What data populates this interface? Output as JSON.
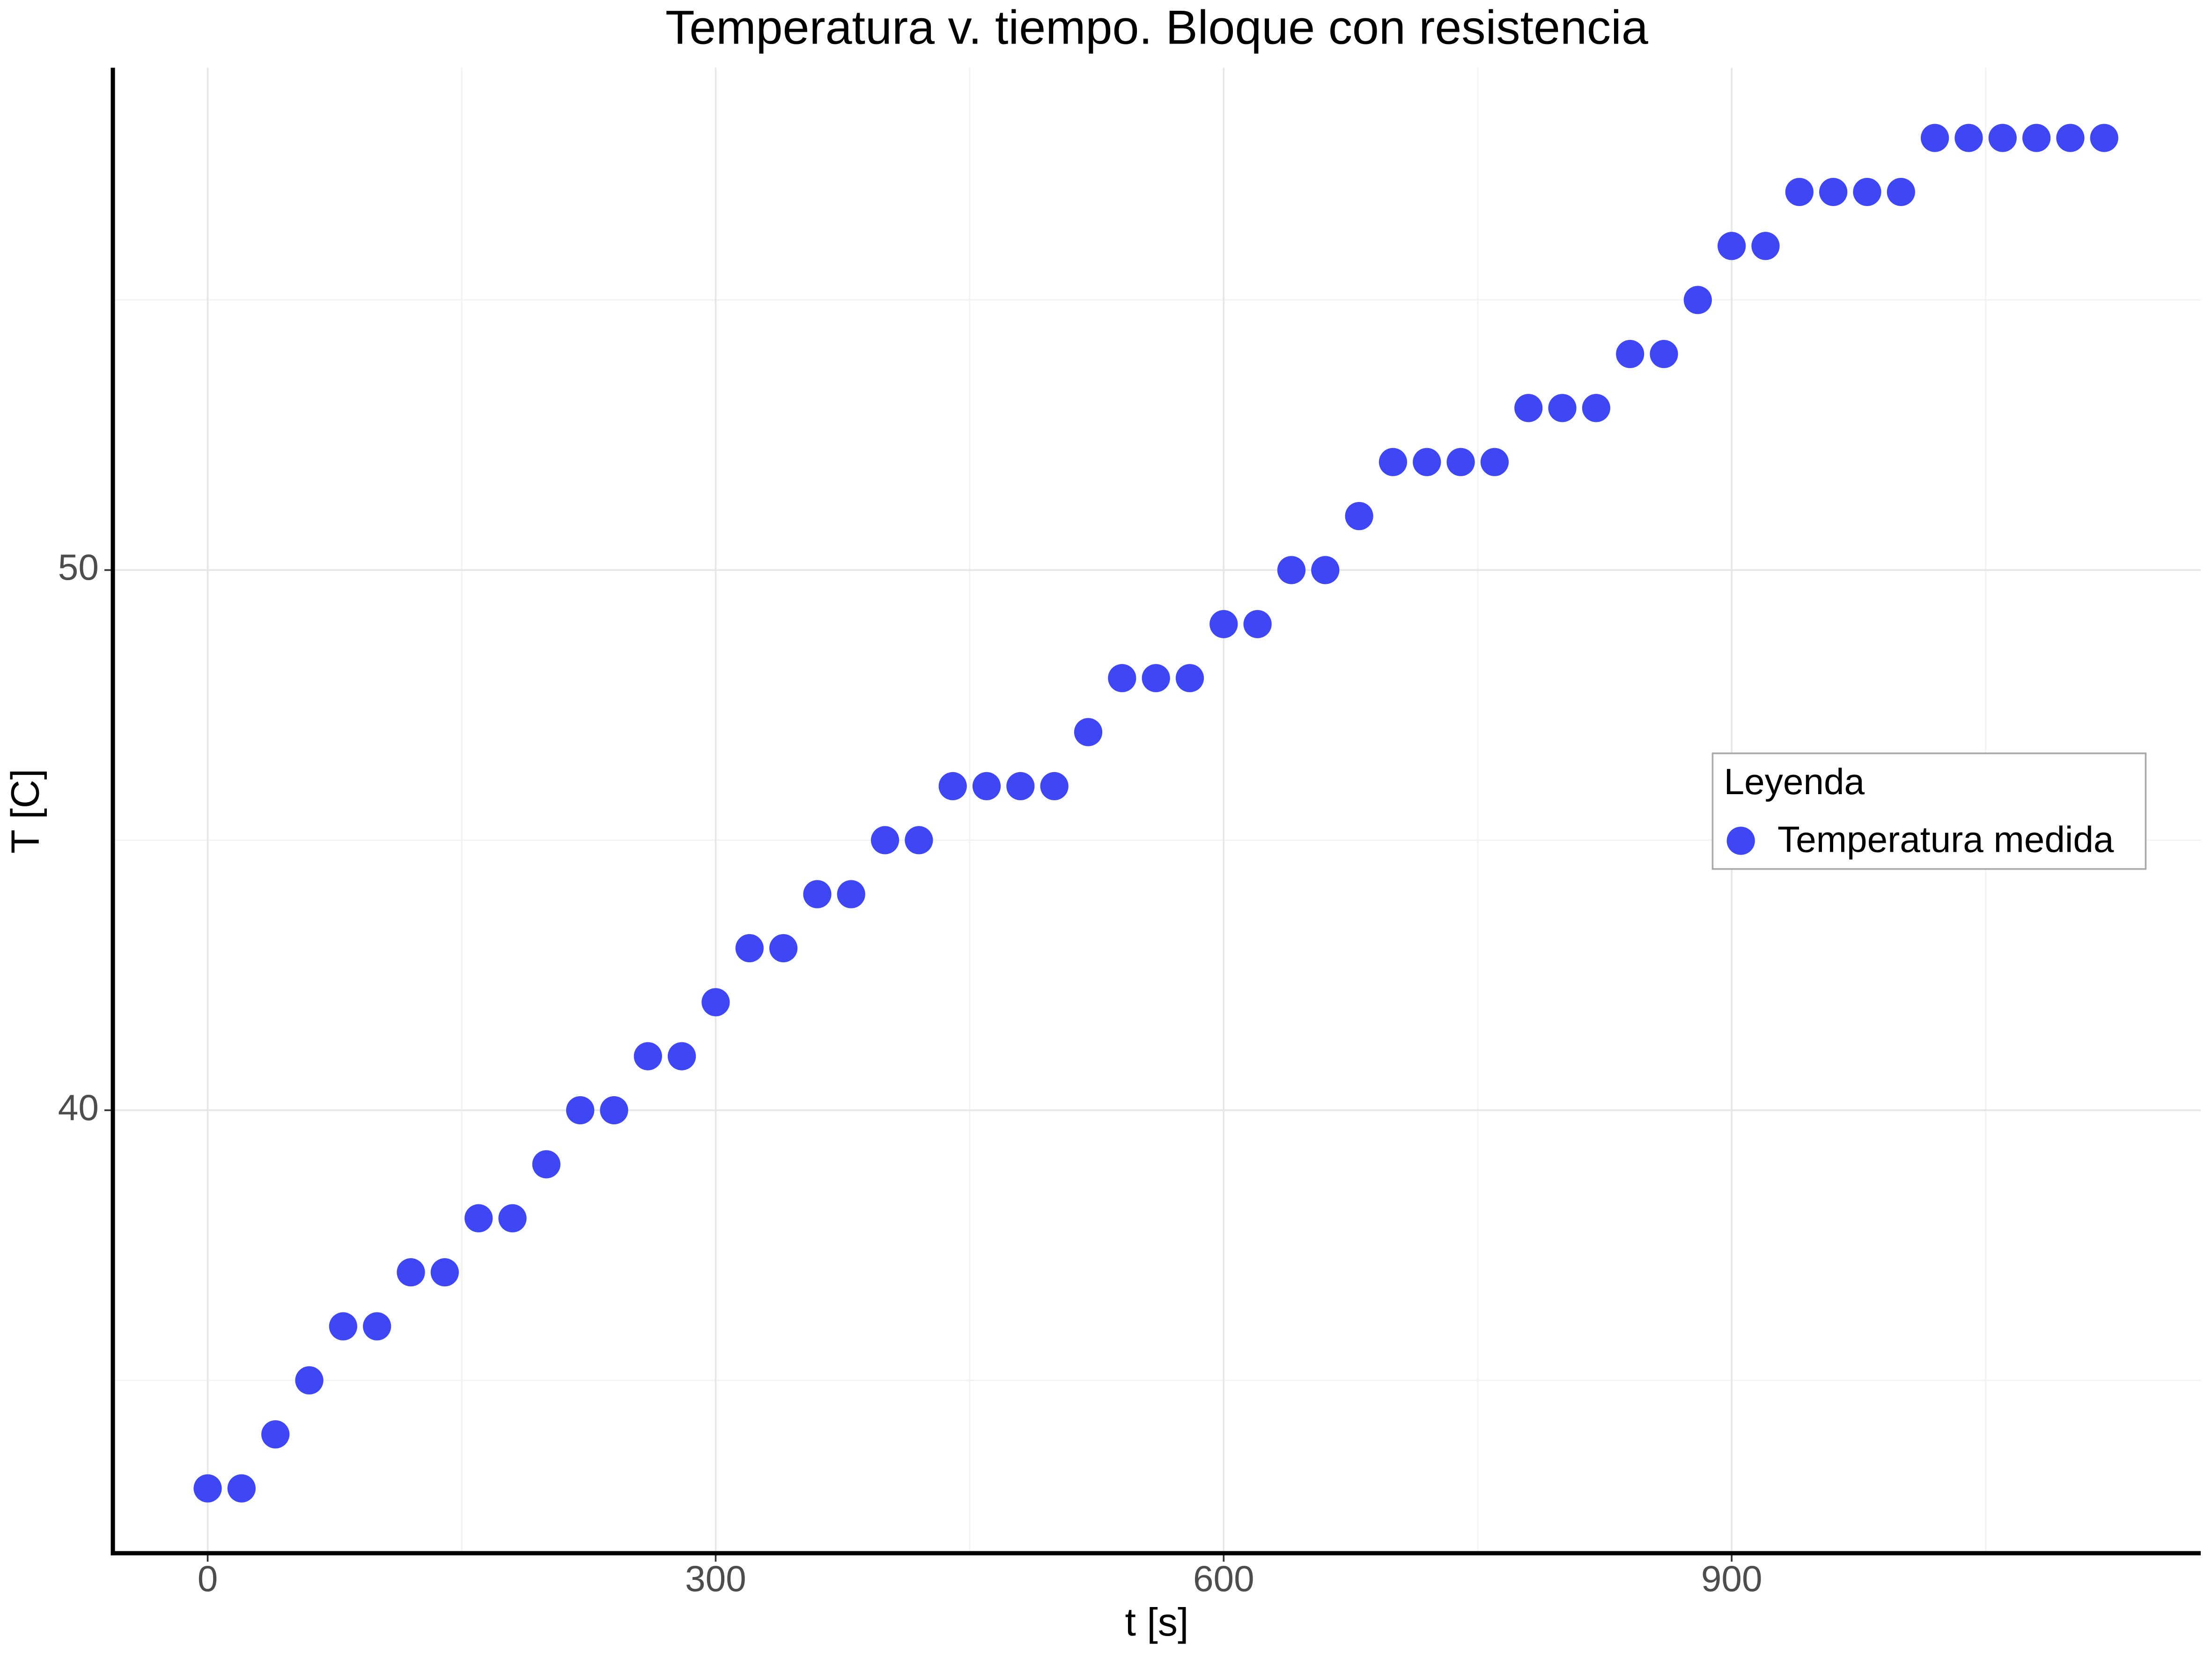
{
  "chart_data": {
    "type": "scatter",
    "title": "Temperatura v. tiempo. Bloque con resistencia",
    "x_label": "t [s]",
    "y_label": "T [C]",
    "x": [
      0,
      20,
      40,
      60,
      80,
      100,
      120,
      140,
      160,
      180,
      200,
      220,
      240,
      260,
      280,
      300,
      320,
      340,
      360,
      380,
      400,
      420,
      440,
      460,
      480,
      500,
      520,
      540,
      560,
      580,
      600,
      620,
      640,
      660,
      680,
      700,
      720,
      740,
      760,
      780,
      800,
      820,
      840,
      860,
      880,
      900,
      920,
      940,
      960,
      980,
      1000,
      1020,
      1040,
      1060,
      1080,
      1100,
      1120
    ],
    "series": [
      {
        "name": "Temperatura medida",
        "color": "#3f47f5",
        "values": [
          33,
          33,
          34,
          35,
          36,
          36,
          37,
          37,
          38,
          38,
          39,
          40,
          40,
          41,
          41,
          42,
          43,
          43,
          44,
          44,
          45,
          45,
          46,
          46,
          46,
          46,
          47,
          48,
          48,
          48,
          49,
          49,
          50,
          50,
          51,
          52,
          52,
          52,
          52,
          53,
          53,
          53,
          54,
          54,
          55,
          56,
          56,
          57,
          57,
          57,
          57,
          58,
          58,
          58,
          58,
          58,
          58
        ]
      }
    ],
    "xlim": [
      -56,
      1177
    ],
    "ylim": [
      31.8,
      59.3
    ],
    "xticks": [
      0,
      300,
      600,
      900
    ],
    "yticks": [
      40,
      50
    ],
    "xminorticks": [
      150,
      450,
      750,
      1050
    ],
    "yminorticks": [
      35,
      45,
      55
    ],
    "grid": true,
    "legend": {
      "title": "Leyenda",
      "position": "right"
    }
  }
}
